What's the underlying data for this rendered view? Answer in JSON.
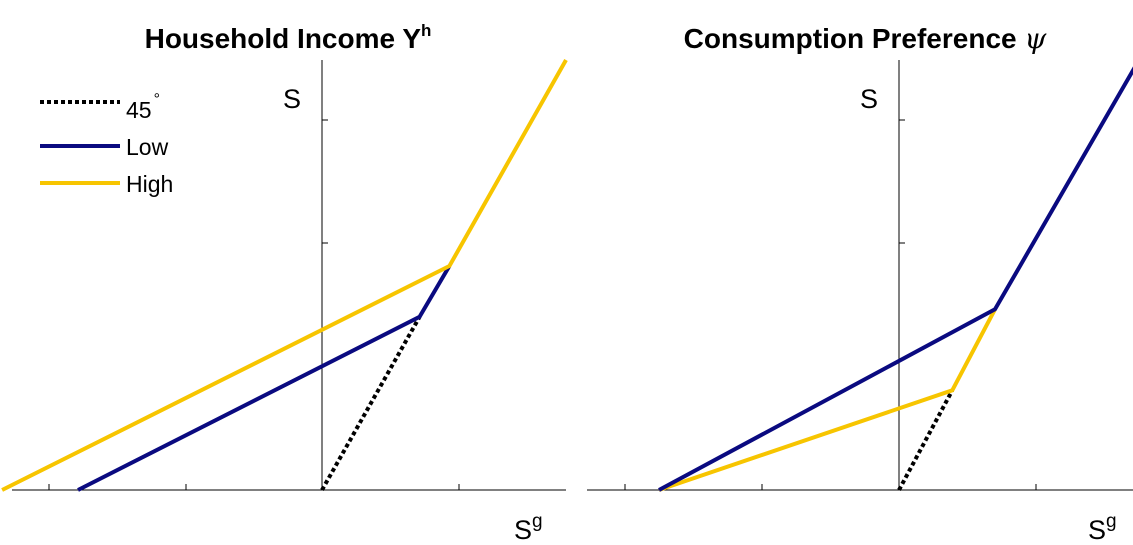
{
  "chart_data": [
    {
      "type": "line",
      "title": "Household Income Y",
      "title_sup": "h",
      "xlabel": "S",
      "xlabel_sup": "g",
      "ylabel": "S",
      "xlim": [
        -11.8,
        9
      ],
      "ylim": [
        0,
        7.2
      ],
      "legend": {
        "placement": "top-left",
        "entries": [
          {
            "label": "45",
            "sup": "°",
            "style": "dotted",
            "color": "#000000"
          },
          {
            "label": "Low",
            "style": "solid",
            "color": "#0a0a80"
          },
          {
            "label": "High",
            "style": "solid",
            "color": "#f7c500"
          }
        ]
      },
      "series": [
        {
          "key": "45",
          "color": "#000000",
          "dash": true,
          "x": [
            0,
            3.6
          ],
          "y": [
            0,
            2.9
          ]
        },
        {
          "key": "Low",
          "color": "#0a0a80",
          "dash": false,
          "x": [
            -9,
            3.6,
            4.7
          ],
          "y": [
            0,
            2.9,
            3.75
          ]
        },
        {
          "key": "High",
          "color": "#f7c500",
          "dash": false,
          "x": [
            -11.8,
            4.7,
            9
          ],
          "y": [
            0,
            3.75,
            7.2
          ]
        }
      ],
      "grid": false
    },
    {
      "type": "line",
      "title": "Consumption Preference ",
      "title_symbol": "ψ",
      "xlabel": "S",
      "xlabel_sup": "g",
      "ylabel": "S",
      "xlim": [
        -11.2,
        9
      ],
      "ylim": [
        0,
        6.9
      ],
      "legend": null,
      "series": [
        {
          "key": "45",
          "color": "#000000",
          "dash": true,
          "x": [
            0,
            2
          ],
          "y": [
            0,
            1.6
          ]
        },
        {
          "key": "High",
          "color": "#f7c500",
          "dash": false,
          "x": [
            -9,
            2,
            3.6
          ],
          "y": [
            0,
            1.6,
            2.9
          ]
        },
        {
          "key": "Low",
          "color": "#0a0a80",
          "dash": false,
          "x": [
            -9,
            3.6,
            9
          ],
          "y": [
            0,
            2.9,
            6.9
          ]
        }
      ],
      "grid": false
    }
  ]
}
